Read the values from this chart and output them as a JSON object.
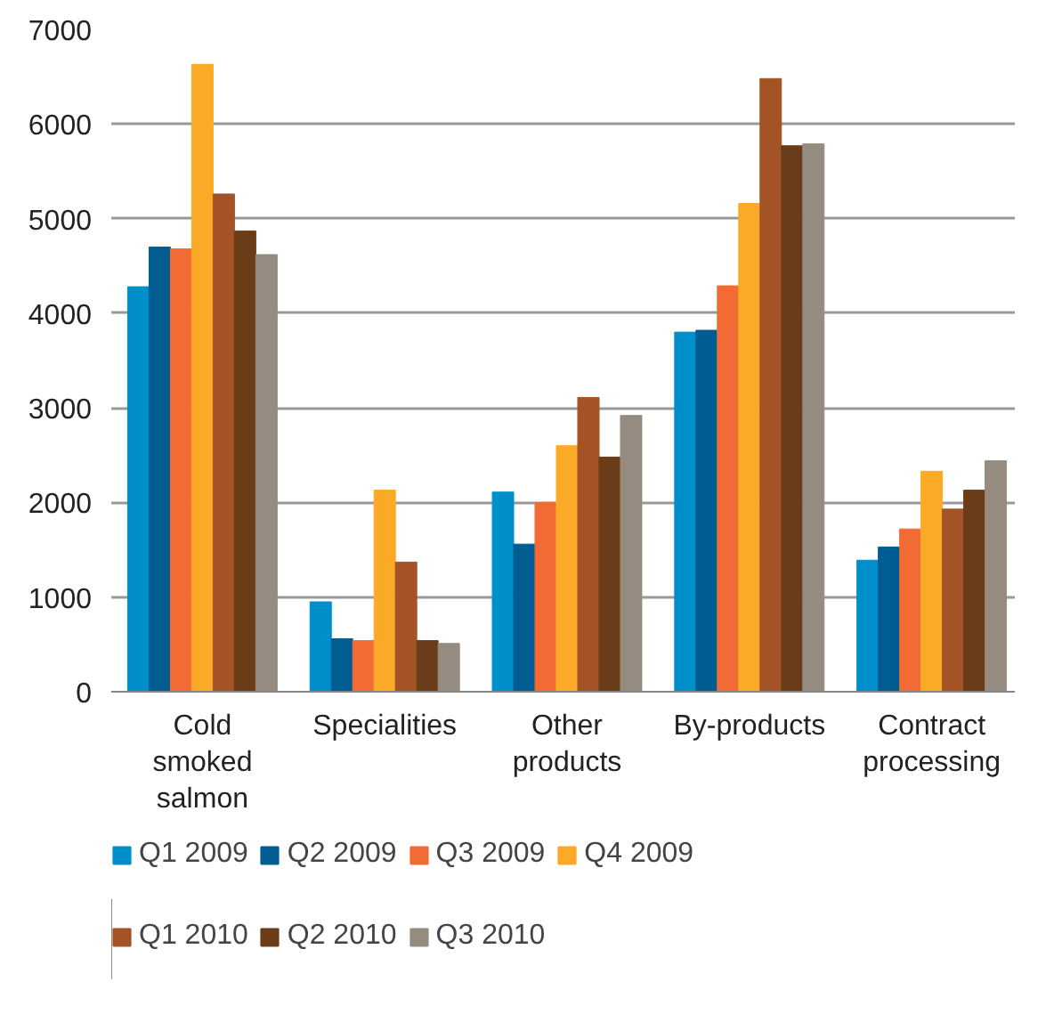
{
  "chart_data": {
    "type": "bar",
    "categories": [
      "Cold smoked salmon",
      "Specialities",
      "Other products",
      "By-products",
      "Contract processing"
    ],
    "series": [
      {
        "name": "Q1 2009",
        "color": "#008fcb",
        "values": [
          4280,
          950,
          2110,
          3800,
          1390
        ]
      },
      {
        "name": "Q2 2009",
        "color": "#005d92",
        "values": [
          4700,
          560,
          1560,
          3820,
          1530
        ]
      },
      {
        "name": "Q3 2009",
        "color": "#f26b35",
        "values": [
          4680,
          540,
          2000,
          4290,
          1720
        ]
      },
      {
        "name": "Q4 2009",
        "color": "#fbaa27",
        "values": [
          6630,
          2130,
          2600,
          5160,
          2330
        ]
      },
      {
        "name": "Q1 2010",
        "color": "#a35326",
        "values": [
          5260,
          1370,
          3110,
          6480,
          1930
        ]
      },
      {
        "name": "Q2 2010",
        "color": "#6a3d18",
        "values": [
          4870,
          540,
          2480,
          5770,
          2130
        ]
      },
      {
        "name": "Q3 2010",
        "color": "#958b80",
        "values": [
          4620,
          510,
          2920,
          5790,
          2440
        ]
      }
    ],
    "ylim": [
      0,
      7000
    ],
    "yticks": [
      0,
      1000,
      2000,
      3000,
      4000,
      5000,
      6000,
      7000
    ],
    "grid": "y",
    "legend": "bottom"
  }
}
